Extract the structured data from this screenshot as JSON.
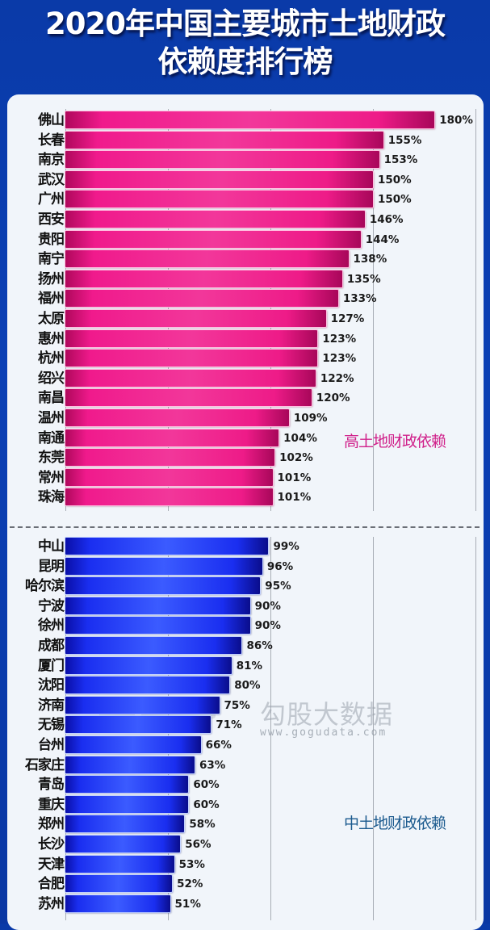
{
  "header": {
    "title_line1": "2020年中国主要城市土地财政",
    "title_line2": "依赖度排行榜"
  },
  "legend": {
    "high": "高土地财政依赖",
    "mid": "中土地财政依赖"
  },
  "watermark": {
    "brand": "勾股大数据",
    "url": "www.gogudata.com"
  },
  "colors": {
    "background": "#0b3db0",
    "panel": "#f1f5fa",
    "high_bar": "#ee1b88",
    "mid_bar": "#1a2ef0",
    "high_legend": "#d0208a",
    "mid_legend": "#1b5a8e"
  },
  "chart_data": {
    "type": "bar",
    "orientation": "horizontal",
    "title": "2020年中国主要城市土地财政依赖度排行榜",
    "xlabel": "",
    "ylabel": "",
    "xlim": [
      0,
      200
    ],
    "grid": true,
    "gridlines_at": [
      0,
      50,
      100,
      150,
      200
    ],
    "unit": "%",
    "series": [
      {
        "name": "高土地财政依赖",
        "color": "#ee1b88",
        "categories": [
          "佛山",
          "长春",
          "南京",
          "武汉",
          "广州",
          "西安",
          "贵阳",
          "南宁",
          "扬州",
          "福州",
          "太原",
          "惠州",
          "杭州",
          "绍兴",
          "南昌",
          "温州",
          "南通",
          "东莞",
          "常州",
          "珠海"
        ],
        "values": [
          180,
          155,
          153,
          150,
          150,
          146,
          144,
          138,
          135,
          133,
          127,
          123,
          123,
          122,
          120,
          109,
          104,
          102,
          101,
          101
        ],
        "labels": [
          "180%",
          "155%",
          "153%",
          "150%",
          "150%",
          "146%",
          "144%",
          "138%",
          "135%",
          "133%",
          "127%",
          "123%",
          "123%",
          "122%",
          "120%",
          "109%",
          "104%",
          "102%",
          "101%",
          "101%"
        ]
      },
      {
        "name": "中土地财政依赖",
        "color": "#1a2ef0",
        "categories": [
          "中山",
          "昆明",
          "哈尔滨",
          "宁波",
          "徐州",
          "成都",
          "厦门",
          "沈阳",
          "济南",
          "无锡",
          "台州",
          "石家庄",
          "青岛",
          "重庆",
          "郑州",
          "长沙",
          "天津",
          "合肥",
          "苏州"
        ],
        "values": [
          99,
          96,
          95,
          90,
          90,
          86,
          81,
          80,
          75,
          71,
          66,
          63,
          60,
          60,
          58,
          56,
          53,
          52,
          51
        ],
        "labels": [
          "99%",
          "96%",
          "95%",
          "90%",
          "90%",
          "86%",
          "81%",
          "80%",
          "75%",
          "71%",
          "66%",
          "63%",
          "60%",
          "60%",
          "58%",
          "56%",
          "53%",
          "52%",
          "51%"
        ]
      }
    ]
  }
}
